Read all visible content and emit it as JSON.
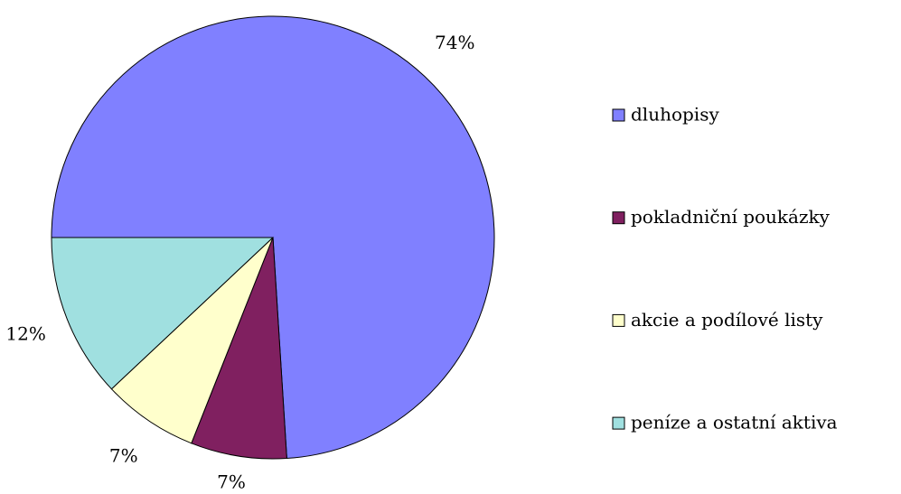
{
  "chart_data": {
    "type": "pie",
    "categories": [
      "dluhopisy",
      "pokladniční poukázky",
      "akcie a podílové listy",
      "peníze a ostatní aktiva"
    ],
    "values": [
      74,
      7,
      7,
      12
    ],
    "value_labels": [
      "74%",
      "7%",
      "7%",
      "12%"
    ],
    "colors": [
      "#8080ff",
      "#802060",
      "#ffffcc",
      "#a0e0e0"
    ],
    "legend": "right"
  }
}
